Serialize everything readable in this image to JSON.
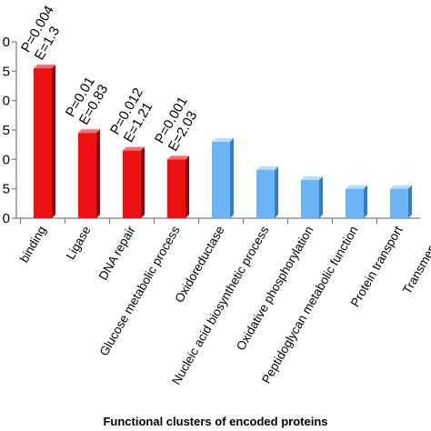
{
  "chart_data": {
    "type": "bar",
    "xlabel": "Functional clusters of encoded proteins",
    "ylabel": "",
    "yticks": [
      "0",
      "5",
      "0",
      "5",
      "0",
      "5",
      "0"
    ],
    "ylim": [
      0,
      30
    ],
    "categories": [
      "binding",
      "Ligase",
      "DNA repair",
      "Glucose metabolic process",
      "Oxidoreductase",
      "Nucleic acid biosynthetic process",
      "Oxidative phosphorylation",
      "Peptidoglycan metabolic function",
      "Protein transport",
      "Transmembra"
    ],
    "values": [
      25.5,
      14.5,
      11.5,
      10,
      13,
      8.2,
      6.5,
      5,
      5,
      null
    ],
    "enriched_count": 4,
    "annotations": [
      {
        "category": "binding",
        "lines": [
          "E=1.3",
          "P=0.004"
        ]
      },
      {
        "category": "Ligase",
        "lines": [
          "E=0.83",
          "P=0.01"
        ]
      },
      {
        "category": "DNA repair",
        "lines": [
          "E=1.21",
          "P=0.012"
        ]
      },
      {
        "category": "Glucose metabolic process",
        "lines": [
          "E=2.03",
          "P=0.001"
        ]
      }
    ],
    "colors": {
      "enriched_front": "#ee1111",
      "enriched_side": "#a80000",
      "enriched_top": "#ff6a6a",
      "other_front": "#6cb4f5",
      "other_side": "#2a7fd0",
      "other_top": "#b6dcff",
      "axis": "#7f7f7f"
    },
    "grid": false,
    "legend": "none"
  }
}
